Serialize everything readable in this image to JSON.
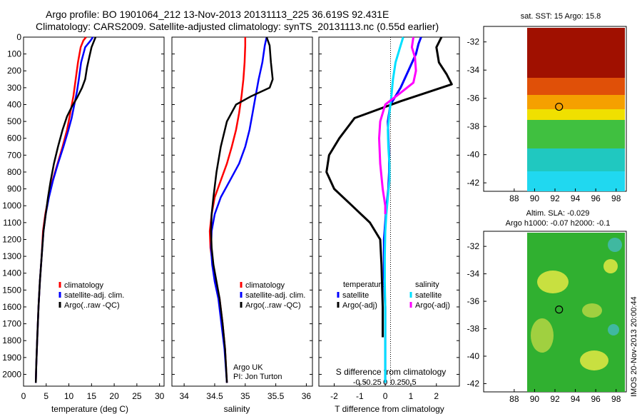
{
  "header": {
    "line1": "Argo profile: BO 1901064_212 13-Nov-2013 20131113_225 36.619S 92.431E",
    "line2": "Climatology: CARS2009. Satellite-adjusted climatology: synTS_20131113.nc (0.55d earlier)"
  },
  "colors": {
    "climatology": "#ff0000",
    "satellite": "#0000ff",
    "argo": "#000000",
    "sat_salinity": "#00e0ff",
    "argo_adj_salinity": "#ff00ff"
  },
  "notes": {
    "argo_uk": "Argo UK",
    "pi": "PI: Jon Turton"
  },
  "diff_labels": {
    "temperature": "temperature",
    "salinity": "salinity",
    "s_axis_label": "S difference from climatology"
  },
  "map_labels": {
    "sst": "sat. SST: 15 Argo: 15.8",
    "sla": "Altim. SLA: -0.029",
    "sla_h": "Argo h1000: -0.07 h2000: -0.1"
  },
  "footer": {
    "stamp": "IMOS 20-Nov-2013 20:00:44"
  },
  "chart_data": [
    {
      "type": "line",
      "xlabel": "temperature (deg C)",
      "xlim": [
        0,
        31
      ],
      "xticks": [
        0,
        5,
        10,
        15,
        20,
        25,
        30
      ],
      "ylim": [
        0,
        2070
      ],
      "yticks": [
        0,
        100,
        200,
        300,
        400,
        500,
        600,
        700,
        800,
        900,
        1000,
        1100,
        1200,
        1300,
        1400,
        1500,
        1600,
        1700,
        1800,
        1900,
        2000
      ],
      "legend": [
        "climatology",
        "satellite-adj. clim.",
        "Argo(..raw -QC)"
      ],
      "legend_position": "lower-middle",
      "series": [
        {
          "name": "climatology",
          "color": "#ff0000",
          "x": [
            13.8,
            13.2,
            12.6,
            12.0,
            11.5,
            11.0,
            10.3,
            9.6,
            8.6,
            7.5,
            6.4,
            5.5,
            4.8,
            4.3,
            4.0,
            3.6,
            3.3,
            3.0,
            2.8,
            2.7
          ],
          "y": [
            0,
            20,
            60,
            150,
            250,
            350,
            450,
            550,
            650,
            750,
            850,
            950,
            1050,
            1150,
            1300,
            1450,
            1600,
            1800,
            1950,
            2050
          ]
        },
        {
          "name": "satellite-adj. clim.",
          "color": "#0000ff",
          "x": [
            15.3,
            14.8,
            13.6,
            12.7,
            12.2,
            11.8,
            11.2,
            10.6,
            9.8,
            8.8,
            7.6,
            6.5,
            5.6,
            4.9,
            4.4,
            4.0,
            3.6,
            3.3,
            3.0,
            2.8,
            2.7
          ],
          "y": [
            0,
            20,
            60,
            150,
            250,
            320,
            400,
            480,
            560,
            650,
            750,
            850,
            950,
            1050,
            1150,
            1300,
            1450,
            1600,
            1800,
            1950,
            2050
          ]
        },
        {
          "name": "Argo(..raw -QC)",
          "color": "#000000",
          "x": [
            15.9,
            15.6,
            15.0,
            14.5,
            14.0,
            13.6,
            12.9,
            11.8,
            10.7,
            9.6,
            8.6,
            7.6,
            6.7,
            6.0,
            5.4,
            4.9,
            4.4,
            4.0,
            3.6,
            3.3,
            3.0,
            2.8,
            2.7
          ],
          "y": [
            0,
            20,
            60,
            120,
            180,
            250,
            300,
            360,
            410,
            470,
            550,
            650,
            750,
            850,
            950,
            1050,
            1150,
            1300,
            1450,
            1600,
            1800,
            1950,
            2050
          ]
        }
      ]
    },
    {
      "type": "line",
      "xlabel": "salinity",
      "xlim": [
        33.8,
        36.1
      ],
      "xticks": [
        34,
        34.5,
        35,
        35.5,
        36
      ],
      "xticklabels": [
        "34",
        "34.5",
        "35",
        "35.5",
        "36"
      ],
      "ylim": [
        0,
        2070
      ],
      "legend": [
        "climatology",
        "satellite-adj. clim.",
        "Argo(..raw -QC)"
      ],
      "legend_position": "lower-right",
      "series": [
        {
          "name": "climatology",
          "color": "#ff0000",
          "x": [
            35.0,
            35.0,
            34.99,
            34.97,
            34.94,
            34.9,
            34.85,
            34.78,
            34.7,
            34.6,
            34.5,
            34.45,
            34.42,
            34.43,
            34.47,
            34.52,
            34.58,
            34.63,
            34.67,
            34.7
          ],
          "y": [
            0,
            50,
            150,
            250,
            350,
            450,
            550,
            650,
            750,
            850,
            950,
            1050,
            1150,
            1250,
            1350,
            1450,
            1550,
            1700,
            1850,
            2050
          ]
        },
        {
          "name": "satellite-adj. clim.",
          "color": "#0000ff",
          "x": [
            35.35,
            35.32,
            35.28,
            35.22,
            35.17,
            35.12,
            35.07,
            35.0,
            34.9,
            34.75,
            34.6,
            34.5,
            34.45,
            34.44,
            34.46,
            34.5,
            34.56,
            34.61,
            34.66,
            34.7
          ],
          "y": [
            0,
            50,
            150,
            250,
            350,
            450,
            550,
            650,
            750,
            850,
            950,
            1050,
            1150,
            1250,
            1350,
            1450,
            1550,
            1700,
            1850,
            2050
          ]
        },
        {
          "name": "Argo(..raw -QC)",
          "color": "#000000",
          "x": [
            35.35,
            35.4,
            35.42,
            35.45,
            35.4,
            35.1,
            34.85,
            34.7,
            34.6,
            34.53,
            34.48,
            34.45,
            34.44,
            34.45,
            34.48,
            34.53,
            34.58,
            34.63,
            34.67,
            34.7
          ],
          "y": [
            0,
            50,
            150,
            250,
            300,
            350,
            400,
            500,
            650,
            800,
            950,
            1050,
            1150,
            1250,
            1350,
            1450,
            1550,
            1700,
            1850,
            2050
          ]
        }
      ]
    },
    {
      "type": "line",
      "xlabel": "T difference from climatology",
      "xlim": [
        -2.6,
        2.9
      ],
      "xticks": [
        -2,
        -1,
        0,
        1,
        2
      ],
      "xticklabels": [
        "-2",
        "-1",
        "0",
        "1",
        "2"
      ],
      "s_xticks": [
        -0.5,
        -0.25,
        0,
        0.25,
        0.5
      ],
      "s_xticklabels": [
        "-0.5",
        "-0.25",
        "0",
        "0.25",
        "0.5"
      ],
      "s_scale_note": "S difference from climatology",
      "ylim": [
        0,
        2070
      ],
      "legend_groups": [
        {
          "title": "temperature",
          "items": [
            "satellite",
            "Argo(-adj)"
          ]
        },
        {
          "title": "salinity",
          "items": [
            "satellite",
            "Argo(-adj)"
          ]
        }
      ],
      "series": [
        {
          "name": "satellite",
          "group": "temperature",
          "color": "#0000ff",
          "x": [
            1.4,
            1.3,
            1.2,
            0.9,
            0.6,
            0.2,
            0.1,
            0.12,
            0.15,
            0.15,
            0.12,
            0.05,
            0.0,
            -0.05,
            -0.05,
            -0.05,
            -0.03,
            0.0,
            0.0,
            0.0
          ],
          "y": [
            0,
            40,
            100,
            200,
            300,
            400,
            500,
            600,
            700,
            800,
            900,
            1000,
            1100,
            1200,
            1300,
            1400,
            1500,
            1600,
            1800,
            2050
          ]
        },
        {
          "name": "Argo(-adj)",
          "group": "temperature",
          "color": "#000000",
          "x": [
            2.2,
            2.0,
            2.1,
            2.4,
            2.6,
            0.6,
            -1.2,
            -1.8,
            -2.2,
            -2.3,
            -2.0,
            -1.3,
            -0.6,
            -0.2,
            -0.15,
            -0.12,
            -0.1,
            -0.1,
            -0.1
          ],
          "y": [
            0,
            60,
            150,
            220,
            280,
            380,
            480,
            600,
            700,
            800,
            900,
            1000,
            1100,
            1200,
            1350,
            1500,
            1600,
            1700,
            1780
          ]
        },
        {
          "name": "satellite",
          "group": "salinity",
          "color": "#00e0ff",
          "x": [
            0.35,
            0.3,
            0.2,
            0.15,
            0.12,
            0.08,
            0.05,
            0.06,
            0.08,
            0.08,
            0.05,
            0.02,
            0.0,
            -0.01,
            -0.01,
            0.0,
            0.0,
            0.0
          ],
          "y": [
            0,
            50,
            150,
            250,
            350,
            450,
            550,
            650,
            750,
            850,
            950,
            1050,
            1150,
            1300,
            1450,
            1600,
            1800,
            2050
          ]
        },
        {
          "name": "Argo(-adj)",
          "group": "salinity",
          "color": "#ff00ff",
          "x": [
            0.55,
            0.52,
            0.58,
            0.6,
            0.55,
            0.3,
            0.0,
            -0.1,
            -0.12,
            -0.1,
            -0.05,
            0.0,
            0.0
          ],
          "y": [
            0,
            60,
            120,
            200,
            270,
            330,
            400,
            500,
            600,
            750,
            900,
            1000,
            1050
          ]
        }
      ]
    },
    {
      "type": "heatmap",
      "title": "sat. SST: 15 Argo: 15.8",
      "xlim": [
        85,
        99
      ],
      "ylim": [
        -42.6,
        -30.9
      ],
      "xticks": [
        88,
        90,
        92,
        94,
        96,
        98
      ],
      "yticks": [
        -32,
        -34,
        -36,
        -38,
        -40,
        -42
      ],
      "argo_position": [
        92.4,
        -36.6
      ]
    },
    {
      "type": "heatmap",
      "title": "Altim. SLA: -0.029",
      "xlim": [
        85,
        99
      ],
      "ylim": [
        -42.6,
        -30.9
      ],
      "xticks": [
        88,
        90,
        92,
        94,
        96,
        98
      ],
      "yticks": [
        -32,
        -34,
        -36,
        -38,
        -40,
        -42
      ],
      "argo_position": [
        92.4,
        -36.6
      ]
    }
  ]
}
